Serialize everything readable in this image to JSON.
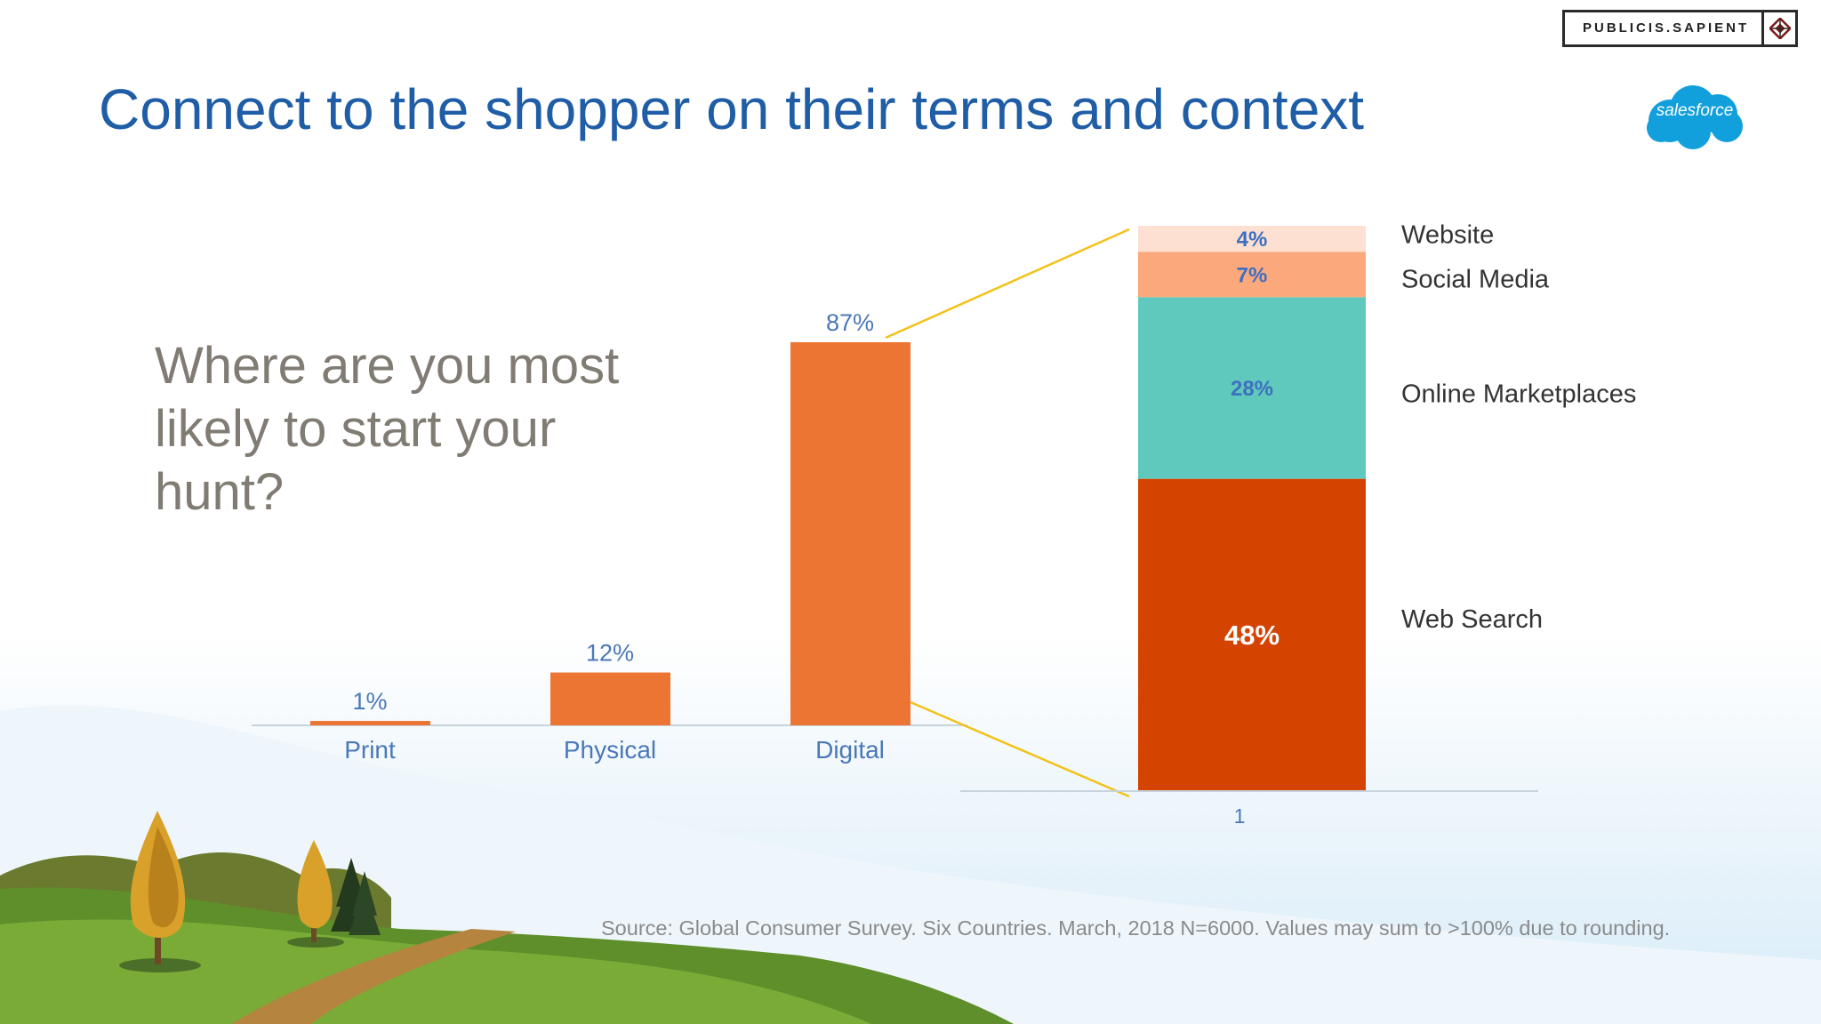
{
  "slide": {
    "title": "Connect to the shopper on their terms and context",
    "question": "Where are you most likely to start your hunt?",
    "source": "Source: Global Consumer Survey. Six Countries. March, 2018 N=6000. Values may sum to >100% due to rounding."
  },
  "brand": {
    "publicis": "PUBLICIS.SAPIENT",
    "salesforce": "salesforce"
  },
  "colors": {
    "title": "#1f5da6",
    "bar_orange": "#ec7533",
    "label_blue": "#4a78b8",
    "web_search": "#d44400",
    "online_marketplaces": "#5ec9bc",
    "social_media": "#fba97c",
    "website": "#fde0d2",
    "connector": "#f2c21a"
  },
  "chart_data": [
    {
      "type": "bar",
      "categories": [
        "Print",
        "Physical",
        "Digital"
      ],
      "values": [
        1,
        12,
        87
      ],
      "value_labels": [
        "1%",
        "12%",
        "87%"
      ],
      "ylim": [
        0,
        87
      ]
    },
    {
      "type": "bar",
      "stacked": true,
      "categories": [
        "1"
      ],
      "series": [
        {
          "name": "Web Search",
          "values": [
            48
          ],
          "label": "48%"
        },
        {
          "name": "Online Marketplaces",
          "values": [
            28
          ],
          "label": "28%"
        },
        {
          "name": "Social Media",
          "values": [
            7
          ],
          "label": "7%"
        },
        {
          "name": "Website",
          "values": [
            4
          ],
          "label": "4%"
        }
      ],
      "total": 87,
      "legend": "right"
    }
  ]
}
